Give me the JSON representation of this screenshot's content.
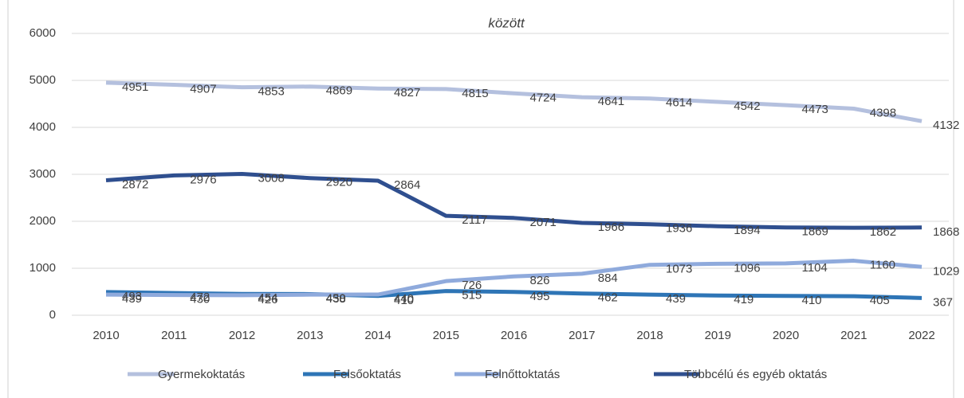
{
  "chart_data": {
    "type": "line",
    "title": "között",
    "categories": [
      "2010",
      "2011",
      "2012",
      "2013",
      "2014",
      "2015",
      "2016",
      "2017",
      "2018",
      "2019",
      "2020",
      "2021",
      "2022"
    ],
    "series": [
      {
        "name": "Gyermekoktatás",
        "color": "#b4c0de",
        "values": [
          4951,
          4907,
          4853,
          4869,
          4827,
          4815,
          4724,
          4641,
          4614,
          4542,
          4473,
          4398,
          4132
        ]
      },
      {
        "name": "Felsőoktatás",
        "color": "#2e75b6",
        "values": [
          493,
          472,
          454,
          450,
          410,
          515,
          495,
          462,
          439,
          419,
          410,
          405,
          367
        ]
      },
      {
        "name": "Felnőttoktatás",
        "color": "#8faadc",
        "values": [
          439,
          430,
          426,
          438,
          440,
          726,
          826,
          884,
          1073,
          1096,
          1104,
          1160,
          1029
        ]
      },
      {
        "name": "Többcélú és egyéb oktatás",
        "color": "#2f4f8f",
        "values": [
          2872,
          2976,
          3008,
          2920,
          2864,
          2117,
          2071,
          1966,
          1936,
          1894,
          1869,
          1862,
          1868
        ]
      }
    ],
    "ylim": [
      0,
      6000
    ],
    "yticks": [
      0,
      1000,
      2000,
      3000,
      4000,
      5000,
      6000
    ],
    "grid": true,
    "legend": "bottom"
  }
}
